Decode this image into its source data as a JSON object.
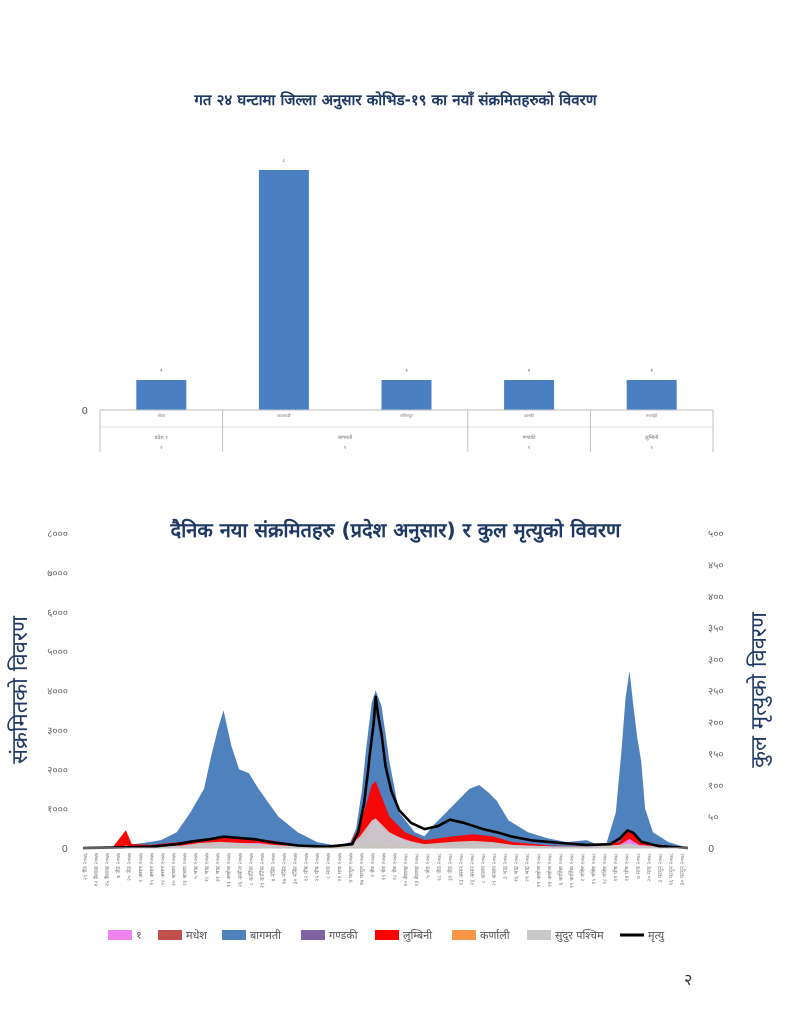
{
  "page_number": "२",
  "chart_data": [
    {
      "type": "bar",
      "title": "गत २४ घन्टामा जिल्ला अनुसार कोभिड-१९ का नयाँ संक्रमितहरुको विवरण",
      "y_tick_label": "0",
      "ylim": [
        0,
        9
      ],
      "color": "#4a7fc1",
      "categories": [
        {
          "district": "मोरङ",
          "province": "प्रदेश १",
          "province_count": "१"
        },
        {
          "district": "काठमाडौं",
          "province": "बागमती",
          "province_count": "१"
        },
        {
          "district": "ललितपुर",
          "province": "बागमती",
          "province_count": "१"
        },
        {
          "district": "कास्की",
          "province": "गण्डकी",
          "province_count": "१"
        },
        {
          "district": "रुपन्देही",
          "province": "लुम्बिनी",
          "province_count": "१"
        }
      ],
      "values": [
        1,
        8,
        1,
        1,
        1
      ],
      "value_labels": [
        "१",
        "८",
        "१",
        "१",
        "१"
      ]
    },
    {
      "type": "area",
      "title": "दैनिक नया संक्रमितहरु (प्रदेश अनुसार) र कुल मृत्युको विवरण",
      "ylabel": "संक्रमितको विवरण",
      "y2label": "कुल मृत्युको विवरण",
      "ylim": [
        0,
        8000
      ],
      "y2lim": [
        0,
        500
      ],
      "y_ticks": [
        "0",
        "१०००",
        "२०००",
        "३०००",
        "४०००",
        "५०००",
        "६०००",
        "७०००",
        "८०००"
      ],
      "y2_ticks": [
        "0",
        "५०",
        "१००",
        "१५०",
        "२००",
        "२५०",
        "३००",
        "३५०",
        "४००",
        "४५०",
        "५००"
      ],
      "x_tick_labels": [
        "२९ चैत्र २०७६",
        "१२ बैशाख २०७७",
        "२५ बैशाख २०७७",
        "७ जेठ २०७७",
        "२० जेठ २०७७",
        "२ असार २०७७",
        "१५ असार २०७७",
        "२८ असार २०७७",
        "१० श्रावण २०७७",
        "२३ श्रावण २०७७",
        "५ भाद्र २०७७",
        "१८ भाद्र २०७७",
        "३१ भाद्र २०७७",
        "१३ असोज २०७७",
        "२६ असोज २०७७",
        "८ कार्तिक २०७७",
        "२१ कार्तिक २०७७",
        "४ मंसिर २०७७",
        "१७ मंसिर २०७७",
        "३० मंसिर २०७७",
        "१२ पौष २०७७",
        "२५ पौष २०७७",
        "८ माघ २०७७",
        "२१ माघ २०७७",
        "४ फागुन २०७७",
        "१७ फागुन २०७७",
        "२ चैत्र २०७७",
        "१५ चैत्र २०७७",
        "२८ चैत्र २०७७",
        "१० बैशाख २०७८",
        "२३ बैशाख २०७८",
        "५ जेठ २०७८",
        "१८ जेठ २०७८",
        "३१ जेठ २०७८",
        "१३ असार २०७८",
        "२६ असार २०७८",
        "८ श्रावण २०७८",
        "२१ श्रावण २०७८",
        "३ भाद्र २०७८",
        "१६ भाद्र २०७८",
        "२९ भाद्र २०७८",
        "११ असोज २०७८",
        "२४ असोज २०७८",
        "६ कार्तिक २०७८",
        "१९ कार्तिक २०७८",
        "२ मंसिर २०७८",
        "१५ मंसिर २०७८",
        "२८ मंसिर २०७८",
        "११ पौष २०७८",
        "२४ पौष २०७८",
        "७ माघ २०७८",
        "२० माघ २०७८",
        "३ फागुन २०७८",
        "१६ फागुन २०७८",
        "३० फागुन २०७८"
      ],
      "legend_position": "bottom",
      "series": [
        {
          "name": "१",
          "color": "#ee82ee",
          "kind": "area",
          "points": [
            [
              0,
              0
            ],
            [
              30,
              15
            ],
            [
              60,
              40
            ],
            [
              75,
              120
            ],
            [
              90,
              130
            ],
            [
              100,
              60
            ],
            [
              120,
              15
            ],
            [
              137,
              60
            ],
            [
              145,
              300
            ],
            [
              150,
              760
            ],
            [
              155,
              400
            ],
            [
              175,
              50
            ],
            [
              203,
              60
            ],
            [
              210,
              140
            ],
            [
              218,
              80
            ],
            [
              240,
              40
            ],
            [
              258,
              20
            ],
            [
              275,
              80
            ],
            [
              280,
              230
            ],
            [
              285,
              80
            ],
            [
              304,
              10
            ],
            [
              310,
              0
            ]
          ]
        },
        {
          "name": "मधेश",
          "color": "#c0504d",
          "kind": "area",
          "points": [
            [
              0,
              0
            ],
            [
              15,
              0
            ],
            [
              22,
              450
            ],
            [
              25,
              50
            ],
            [
              30,
              40
            ],
            [
              45,
              60
            ],
            [
              60,
              90
            ],
            [
              75,
              150
            ],
            [
              95,
              130
            ],
            [
              110,
              50
            ],
            [
              125,
              20
            ],
            [
              137,
              80
            ],
            [
              145,
              600
            ],
            [
              150,
              950
            ],
            [
              155,
              500
            ],
            [
              175,
              80
            ],
            [
              203,
              100
            ],
            [
              210,
              160
            ],
            [
              218,
              90
            ],
            [
              240,
              40
            ],
            [
              258,
              20
            ],
            [
              275,
              100
            ],
            [
              280,
              250
            ],
            [
              285,
              100
            ],
            [
              310,
              0
            ]
          ]
        },
        {
          "name": "बागमती",
          "color": "#4f81bd",
          "kind": "area",
          "points": [
            [
              0,
              0
            ],
            [
              15,
              0
            ],
            [
              22,
              80
            ],
            [
              30,
              120
            ],
            [
              40,
              200
            ],
            [
              48,
              400
            ],
            [
              55,
              900
            ],
            [
              62,
              1500
            ],
            [
              66,
              2400
            ],
            [
              69,
              3000
            ],
            [
              72,
              3500
            ],
            [
              76,
              2600
            ],
            [
              80,
              2000
            ],
            [
              85,
              1900
            ],
            [
              90,
              1500
            ],
            [
              100,
              800
            ],
            [
              110,
              400
            ],
            [
              120,
              150
            ],
            [
              130,
              60
            ],
            [
              137,
              150
            ],
            [
              140,
              500
            ],
            [
              143,
              1500
            ],
            [
              145,
              2500
            ],
            [
              148,
              3700
            ],
            [
              150,
              4000
            ],
            [
              153,
              3600
            ],
            [
              157,
              2200
            ],
            [
              162,
              900
            ],
            [
              170,
              400
            ],
            [
              175,
              300
            ],
            [
              180,
              600
            ],
            [
              186,
              900
            ],
            [
              192,
              1200
            ],
            [
              198,
              1500
            ],
            [
              203,
              1600
            ],
            [
              208,
              1400
            ],
            [
              212,
              1200
            ],
            [
              218,
              700
            ],
            [
              228,
              400
            ],
            [
              238,
              250
            ],
            [
              248,
              150
            ],
            [
              258,
              200
            ],
            [
              263,
              100
            ],
            [
              268,
              80
            ],
            [
              273,
              900
            ],
            [
              276,
              2500
            ],
            [
              278,
              3800
            ],
            [
              280,
              4500
            ],
            [
              282,
              3600
            ],
            [
              284,
              2800
            ],
            [
              286,
              2200
            ],
            [
              288,
              1000
            ],
            [
              292,
              400
            ],
            [
              300,
              150
            ],
            [
              310,
              0
            ]
          ]
        },
        {
          "name": "गण्डकी",
          "color": "#8064a2",
          "kind": "area",
          "points": [
            [
              0,
              0
            ],
            [
              40,
              30
            ],
            [
              70,
              80
            ],
            [
              100,
              40
            ],
            [
              140,
              60
            ],
            [
              150,
              300
            ],
            [
              160,
              100
            ],
            [
              190,
              80
            ],
            [
              220,
              40
            ],
            [
              275,
              60
            ],
            [
              280,
              200
            ],
            [
              285,
              60
            ],
            [
              310,
              0
            ]
          ]
        },
        {
          "name": "लुम्बिनी",
          "color": "#ff0000",
          "kind": "area",
          "points": [
            [
              0,
              0
            ],
            [
              15,
              0
            ],
            [
              22,
              450
            ],
            [
              25,
              100
            ],
            [
              35,
              80
            ],
            [
              45,
              130
            ],
            [
              60,
              200
            ],
            [
              70,
              300
            ],
            [
              80,
              250
            ],
            [
              95,
              200
            ],
            [
              110,
              80
            ],
            [
              125,
              20
            ],
            [
              137,
              120
            ],
            [
              142,
              600
            ],
            [
              145,
              1100
            ],
            [
              148,
              1600
            ],
            [
              150,
              1700
            ],
            [
              153,
              1300
            ],
            [
              157,
              800
            ],
            [
              165,
              400
            ],
            [
              175,
              200
            ],
            [
              190,
              300
            ],
            [
              200,
              350
            ],
            [
              210,
              300
            ],
            [
              220,
              150
            ],
            [
              240,
              60
            ],
            [
              258,
              40
            ],
            [
              275,
              150
            ],
            [
              279,
              450
            ],
            [
              282,
              400
            ],
            [
              285,
              150
            ],
            [
              310,
              0
            ]
          ]
        },
        {
          "name": "कर्णाली",
          "color": "#f79646",
          "kind": "area",
          "points": [
            [
              0,
              0
            ],
            [
              20,
              0
            ],
            [
              22,
              80
            ],
            [
              25,
              10
            ],
            [
              60,
              30
            ],
            [
              80,
              40
            ],
            [
              120,
              10
            ],
            [
              145,
              100
            ],
            [
              150,
              150
            ],
            [
              155,
              80
            ],
            [
              200,
              30
            ],
            [
              280,
              40
            ],
            [
              310,
              0
            ]
          ]
        },
        {
          "name": "सुदुर पश्चिम",
          "color": "#c8c8c8",
          "kind": "area",
          "points": [
            [
              0,
              0
            ],
            [
              15,
              10
            ],
            [
              22,
              30
            ],
            [
              35,
              30
            ],
            [
              50,
              60
            ],
            [
              60,
              130
            ],
            [
              70,
              160
            ],
            [
              80,
              130
            ],
            [
              95,
              90
            ],
            [
              110,
              40
            ],
            [
              130,
              10
            ],
            [
              137,
              80
            ],
            [
              142,
              300
            ],
            [
              145,
              500
            ],
            [
              148,
              700
            ],
            [
              150,
              750
            ],
            [
              153,
              600
            ],
            [
              157,
              400
            ],
            [
              165,
              200
            ],
            [
              175,
              100
            ],
            [
              190,
              160
            ],
            [
              200,
              180
            ],
            [
              210,
              150
            ],
            [
              220,
              80
            ],
            [
              240,
              40
            ],
            [
              258,
              30
            ],
            [
              275,
              80
            ],
            [
              280,
              120
            ],
            [
              285,
              60
            ],
            [
              310,
              0
            ]
          ]
        },
        {
          "name": "मृत्यु",
          "color": "#000000",
          "kind": "line",
          "axis": "y2",
          "points": [
            [
              0,
              0
            ],
            [
              20,
              1
            ],
            [
              35,
              2
            ],
            [
              48,
              6
            ],
            [
              55,
              10
            ],
            [
              65,
              14
            ],
            [
              72,
              18
            ],
            [
              80,
              16
            ],
            [
              88,
              14
            ],
            [
              95,
              10
            ],
            [
              110,
              4
            ],
            [
              125,
              2
            ],
            [
              138,
              6
            ],
            [
              141,
              25
            ],
            [
              144,
              70
            ],
            [
              146,
              120
            ],
            [
              147,
              150
            ],
            [
              149,
              200
            ],
            [
              150,
              240
            ],
            [
              151,
              215
            ],
            [
              153,
              180
            ],
            [
              155,
              130
            ],
            [
              158,
              90
            ],
            [
              162,
              60
            ],
            [
              168,
              40
            ],
            [
              175,
              30
            ],
            [
              182,
              35
            ],
            [
              188,
              45
            ],
            [
              195,
              40
            ],
            [
              205,
              30
            ],
            [
              212,
              25
            ],
            [
              220,
              18
            ],
            [
              230,
              12
            ],
            [
              245,
              8
            ],
            [
              258,
              5
            ],
            [
              270,
              6
            ],
            [
              275,
              15
            ],
            [
              279,
              28
            ],
            [
              282,
              24
            ],
            [
              286,
              10
            ],
            [
              295,
              3
            ],
            [
              310,
              0
            ]
          ]
        }
      ]
    }
  ]
}
